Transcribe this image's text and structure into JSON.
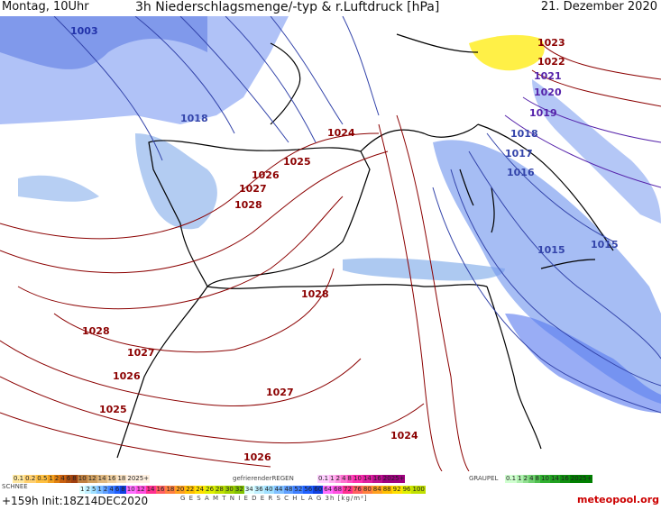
{
  "header": {
    "left": "Montag, 10Uhr",
    "center": "3h Niederschlagsmenge/-typ & r.Luftdruck [hPa]",
    "right": "21. Dezember 2020"
  },
  "footer": {
    "run": "+159h  Init:18Z14DEC2020",
    "total_label": "G E S A M T N I E D E R S C H L A G   3h  [kg/m²]",
    "brand": "meteopool.org"
  },
  "legend": {
    "rain_values": [
      "0.1",
      "0.2",
      "0.5",
      "1",
      "2",
      "4",
      "6",
      "8",
      "10",
      "12",
      "14",
      "16",
      "18",
      "2025+"
    ],
    "snow_tag": "SCHNEE",
    "snow_values": [
      "1",
      "2",
      "5",
      "1",
      "2",
      "4",
      "6",
      "8",
      "10",
      "12",
      "14",
      "16",
      "18",
      "20",
      "22",
      "24",
      "26",
      "28",
      "30",
      "32",
      "34",
      "36",
      "40",
      "44",
      "48",
      "52",
      "56",
      "60",
      "64",
      "68",
      "72",
      "76",
      "80",
      "84",
      "88",
      "92",
      "96",
      "100"
    ],
    "freezing_tag": "gefrierenderREGEN",
    "freezing_values": [
      "0.1",
      "1",
      "2",
      "4",
      "8",
      "10",
      "14",
      "16",
      "2025+"
    ],
    "graupel_tag": "GRAUPEL",
    "graupel_values": [
      "0.1",
      "1",
      "2",
      "4",
      "8",
      "10",
      "14",
      "16",
      "2025+"
    ]
  },
  "isobars": [
    {
      "label": "1003",
      "color": "#2233aa"
    },
    {
      "label": "1018",
      "color": "#3344aa"
    },
    {
      "label": "1024",
      "color": "#8b0000"
    },
    {
      "label": "1025",
      "color": "#8b0000"
    },
    {
      "label": "1026",
      "color": "#8b0000"
    },
    {
      "label": "1027",
      "color": "#8b0000"
    },
    {
      "label": "1028",
      "color": "#8b0000"
    },
    {
      "label": "1028",
      "color": "#8b0000"
    },
    {
      "label": "1028",
      "color": "#8b0000"
    },
    {
      "label": "1027",
      "color": "#8b0000"
    },
    {
      "label": "1026",
      "color": "#8b0000"
    },
    {
      "label": "1025",
      "color": "#8b0000"
    },
    {
      "label": "1027",
      "color": "#8b0000"
    },
    {
      "label": "1026",
      "color": "#8b0000"
    },
    {
      "label": "1024",
      "color": "#8b0000"
    },
    {
      "label": "1023",
      "color": "#8b0000"
    },
    {
      "label": "1022",
      "color": "#8b0000"
    },
    {
      "label": "1021",
      "color": "#5522aa"
    },
    {
      "label": "1020",
      "color": "#5522aa"
    },
    {
      "label": "1019",
      "color": "#5522aa"
    },
    {
      "label": "1018",
      "color": "#3344aa"
    },
    {
      "label": "1017",
      "color": "#3344aa"
    },
    {
      "label": "1016",
      "color": "#3344aa"
    },
    {
      "label": "1015",
      "color": "#3344aa"
    },
    {
      "label": "1015",
      "color": "#3344aa"
    }
  ],
  "colors": {
    "isobar_high": "#8b0000",
    "isobar_low": "#3344aa",
    "rain": "#5577ee",
    "rain_light": "#99bbee",
    "snow": "#ffee33",
    "coast": "#000000"
  }
}
